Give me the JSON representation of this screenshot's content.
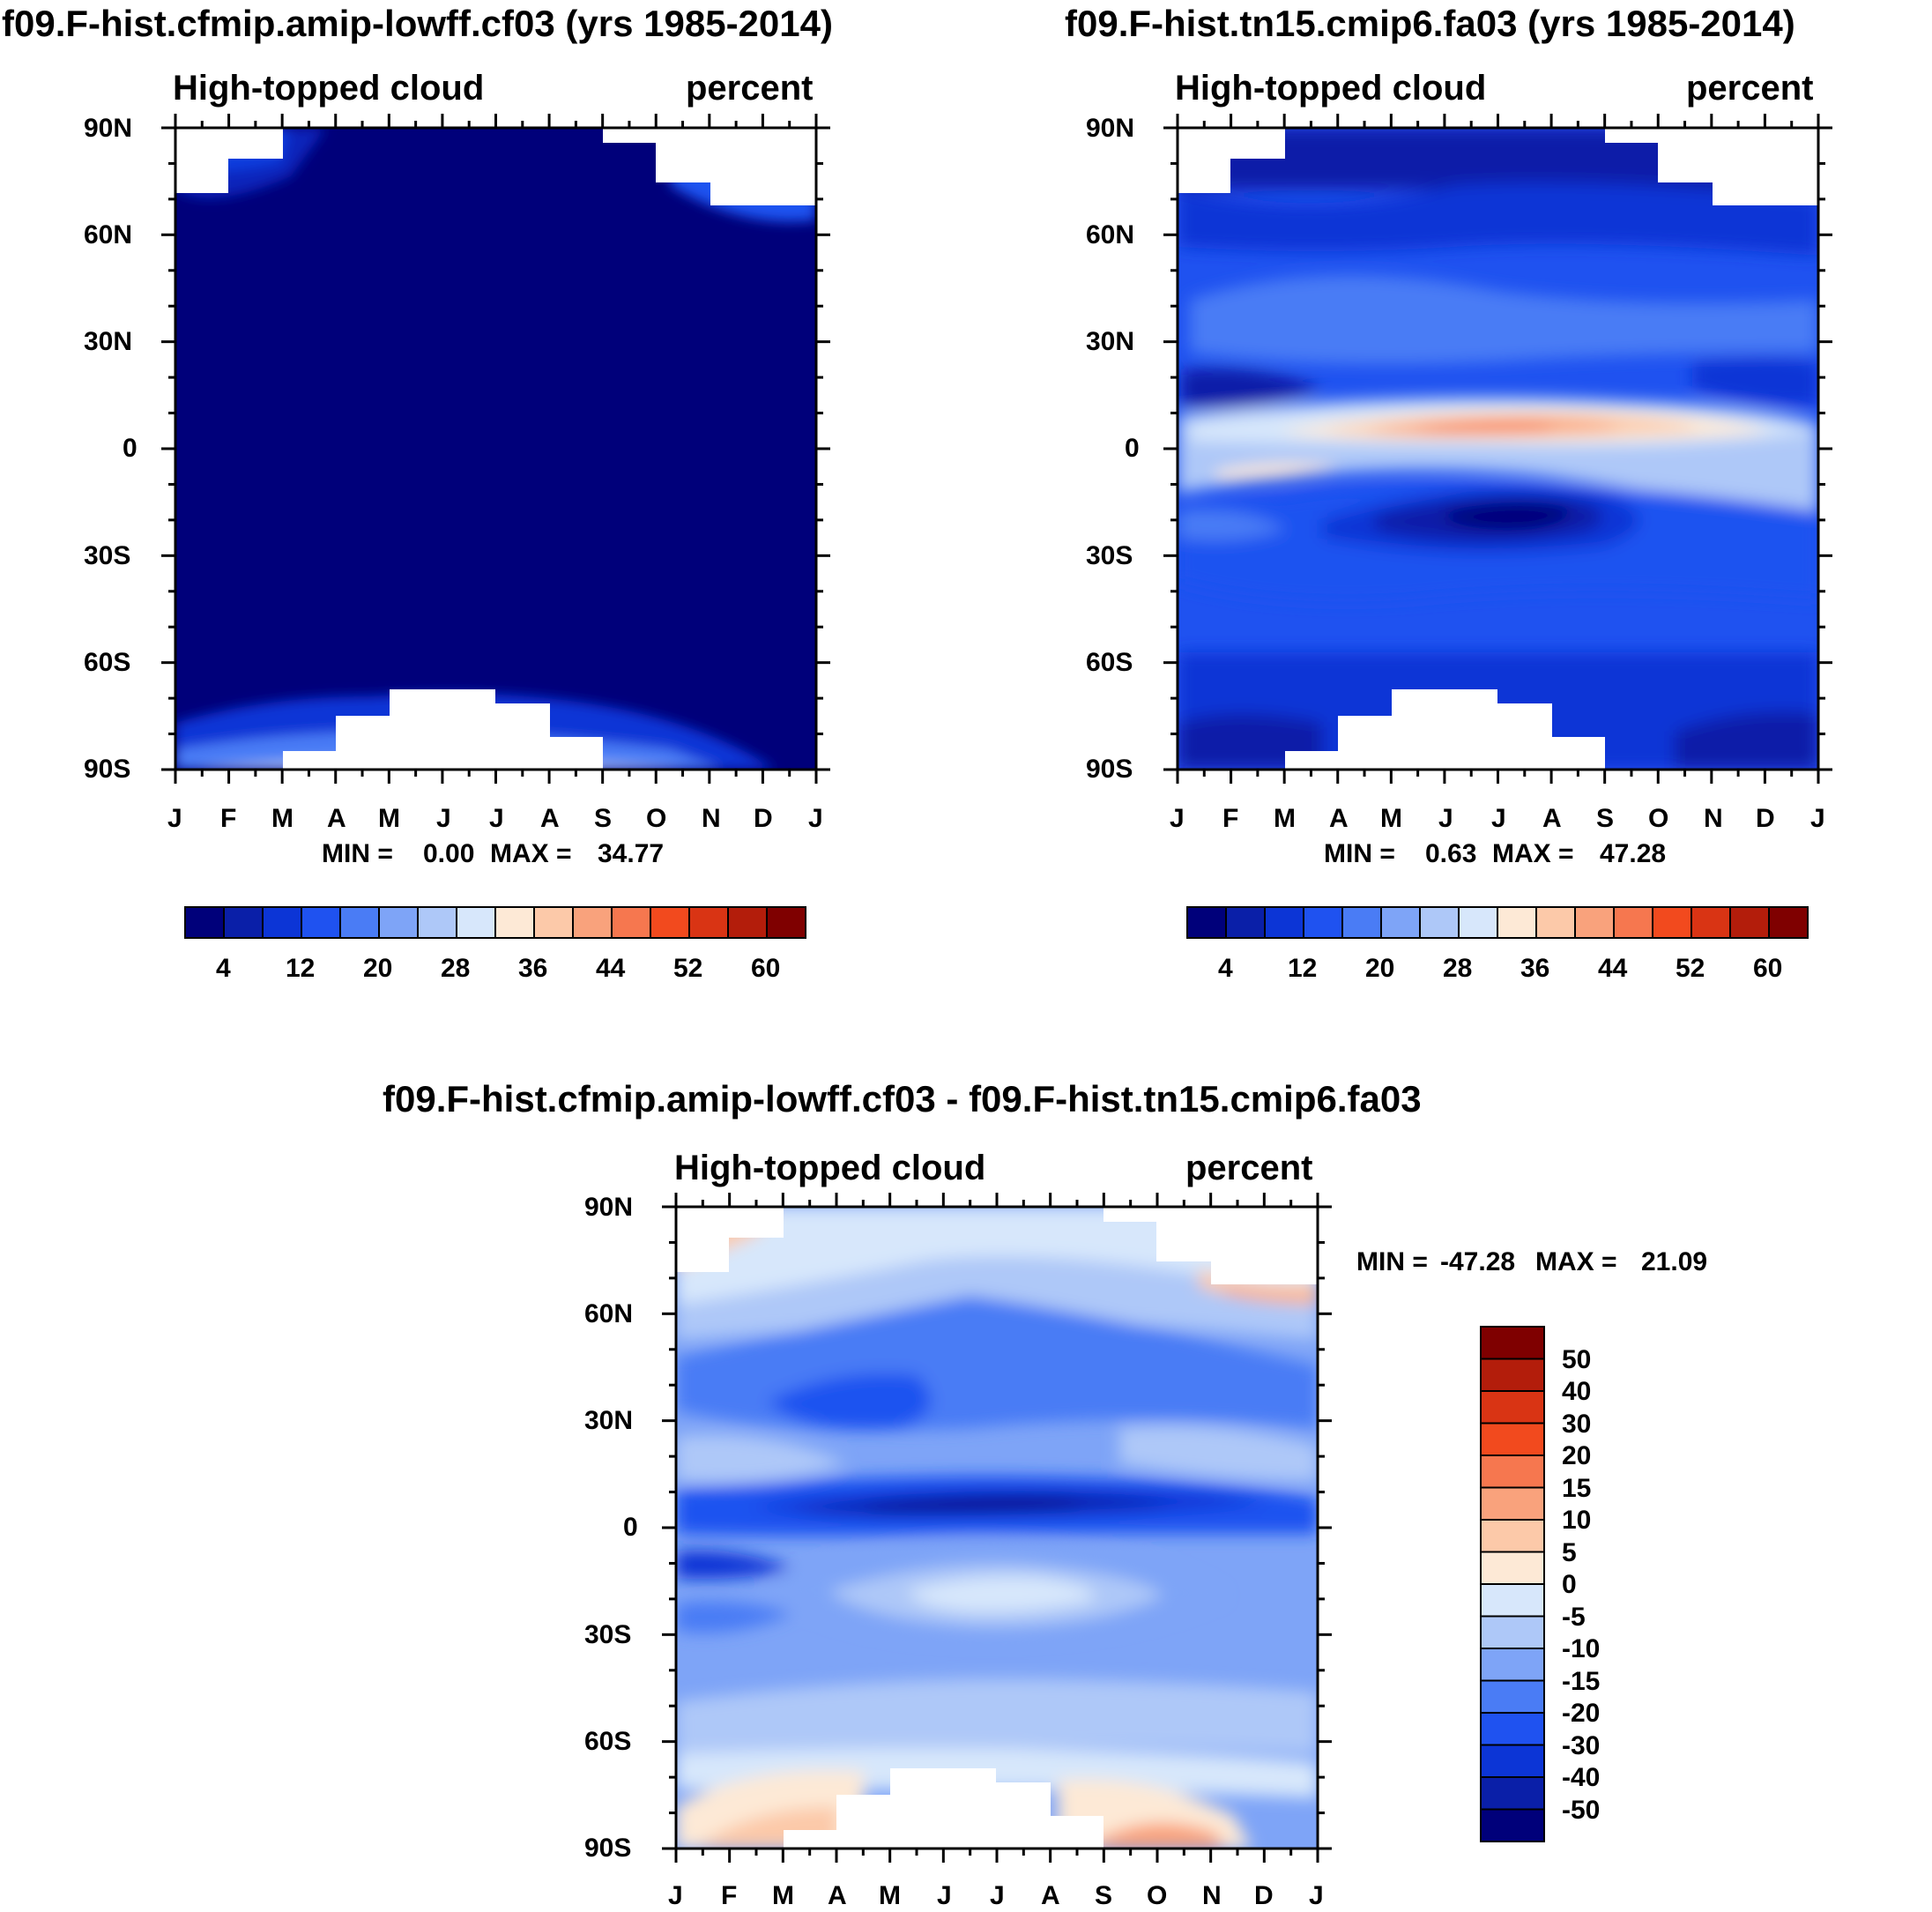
{
  "chart_data": [
    {
      "type": "heatmap",
      "title": "f09.F-hist.cfmip.amip-lowff.cf03 (yrs 1985-2014)",
      "left_label": "High-topped cloud",
      "right_label": "percent",
      "xlabel": "",
      "ylabel": "",
      "x_ticks": [
        "J",
        "F",
        "M",
        "A",
        "M",
        "J",
        "J",
        "A",
        "S",
        "O",
        "N",
        "D",
        "J"
      ],
      "y_ticks": [
        "90N",
        "60N",
        "30N",
        "0",
        "30S",
        "60S",
        "90S"
      ],
      "ylim": [
        -90,
        90
      ],
      "min_label": "MIN =",
      "min_value": "0.00",
      "max_label": "MAX =",
      "max_value": "34.77",
      "colorbar_labels": [
        "4",
        "12",
        "20",
        "28",
        "36",
        "44",
        "52",
        "60"
      ],
      "colorbar_levels": [
        4,
        8,
        12,
        16,
        20,
        24,
        28,
        32,
        36,
        40,
        44,
        48,
        52,
        56,
        60
      ],
      "field_summary": "Nearly uniform darkest blue (< 4) with slightly higher values near polar edges; white masked polar corners"
    },
    {
      "type": "heatmap",
      "title": "f09.F-hist.tn15.cmip6.fa03 (yrs 1985-2014)",
      "left_label": "High-topped cloud",
      "right_label": "percent",
      "xlabel": "",
      "ylabel": "",
      "x_ticks": [
        "J",
        "F",
        "M",
        "A",
        "M",
        "J",
        "J",
        "A",
        "S",
        "O",
        "N",
        "D",
        "J"
      ],
      "y_ticks": [
        "90N",
        "60N",
        "30N",
        "0",
        "30S",
        "60S",
        "90S"
      ],
      "ylim": [
        -90,
        90
      ],
      "min_label": "MIN =",
      "min_value": "0.63",
      "max_label": "MAX =",
      "max_value": "47.28",
      "colorbar_labels": [
        "4",
        "12",
        "20",
        "28",
        "36",
        "44",
        "52",
        "60"
      ],
      "colorbar_levels": [
        4,
        8,
        12,
        16,
        20,
        24,
        28,
        32,
        36,
        40,
        44,
        48,
        52,
        56,
        60
      ],
      "field_summary": "Tropical maximum (~44) near 5-10N peaking Jun-Aug; subtropical minima near 20S and 20N; low values at high latitudes"
    },
    {
      "type": "heatmap",
      "title": "f09.F-hist.cfmip.amip-lowff.cf03 - f09.F-hist.tn15.cmip6.fa03",
      "left_label": "High-topped cloud",
      "right_label": "percent",
      "xlabel": "",
      "ylabel": "",
      "x_ticks": [
        "J",
        "F",
        "M",
        "A",
        "M",
        "J",
        "J",
        "A",
        "S",
        "O",
        "N",
        "D",
        "J"
      ],
      "y_ticks": [
        "90N",
        "60N",
        "30N",
        "0",
        "30S",
        "60S",
        "90S"
      ],
      "ylim": [
        -90,
        90
      ],
      "min_label": "MIN =",
      "min_value": "-47.28",
      "max_label": "MAX =",
      "max_value": "21.09",
      "colorbar_labels": [
        "50",
        "40",
        "30",
        "20",
        "15",
        "10",
        "5",
        "0",
        "-5",
        "-10",
        "-15",
        "-20",
        "-30",
        "-40",
        "-50"
      ],
      "field_summary": "Mostly negative differences; strongest (< -40) along 5-10N; near zero at 20S and positive (0-15) at polar edges"
    }
  ],
  "colors": {
    "blue_red_16": [
      "#00007a",
      "#0a1fa8",
      "#0c35d6",
      "#1f52f0",
      "#4a7cf5",
      "#7ea4f7",
      "#aec8f8",
      "#d7e7fb",
      "#fde9d6",
      "#fcc9a9",
      "#f9a27c",
      "#f6774f",
      "#f24a1e",
      "#d93414",
      "#b31d0b",
      "#7f0000"
    ],
    "diff_16": [
      "#7f0000",
      "#b31d0b",
      "#d93414",
      "#f24a1e",
      "#f6774f",
      "#f9a27c",
      "#fcc9a9",
      "#fde9d6",
      "#d7e7fb",
      "#aec8f8",
      "#7ea4f7",
      "#4a7cf5",
      "#1f52f0",
      "#0c35d6",
      "#0a1fa8",
      "#00007a"
    ]
  }
}
